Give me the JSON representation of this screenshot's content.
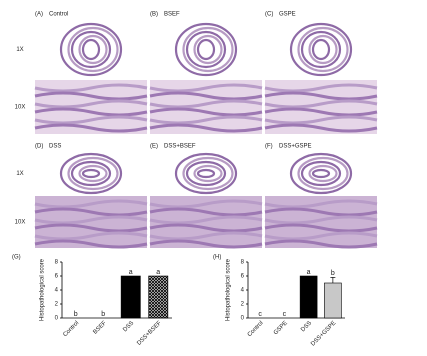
{
  "panels": [
    {
      "label": "(A)",
      "name": "Control"
    },
    {
      "label": "(B)",
      "name": "BSEF"
    },
    {
      "label": "(C)",
      "name": "GSPE"
    },
    {
      "label": "(D)",
      "name": "DSS"
    },
    {
      "label": "(E)",
      "name": "DSS+BSEF"
    },
    {
      "label": "(F)",
      "name": "DSS+GSPE"
    }
  ],
  "magnifications": [
    "1X",
    "10X",
    "1X",
    "10X"
  ],
  "chart_data": [
    {
      "type": "bar",
      "panel_label": "(G)",
      "ylabel": "Histopathological score",
      "categories": [
        "Control",
        "BSEF",
        "DSS",
        "DSS+BSEF"
      ],
      "values": [
        0,
        0,
        6,
        6
      ],
      "annotations": [
        "b",
        "b",
        "a",
        "a"
      ],
      "colors": [
        "#000000",
        "#000000",
        "#000000",
        "#444444"
      ],
      "hatch": [
        false,
        false,
        false,
        true
      ],
      "ylim": [
        0,
        8
      ],
      "yticks": [
        0,
        2,
        4,
        6,
        8
      ]
    },
    {
      "type": "bar",
      "panel_label": "(H)",
      "ylabel": "Histopathological score",
      "categories": [
        "Control",
        "GSPE",
        "DSS",
        "DSS+GSPE"
      ],
      "values": [
        0,
        0,
        6,
        5
      ],
      "errors": [
        null,
        null,
        null,
        0.8
      ],
      "annotations": [
        "c",
        "c",
        "a",
        "b"
      ],
      "colors": [
        "#000000",
        "#000000",
        "#000000",
        "#c8c8c8"
      ],
      "hatch": [
        false,
        false,
        false,
        false
      ],
      "ylim": [
        0,
        8
      ],
      "yticks": [
        0,
        2,
        4,
        6,
        8
      ]
    }
  ]
}
